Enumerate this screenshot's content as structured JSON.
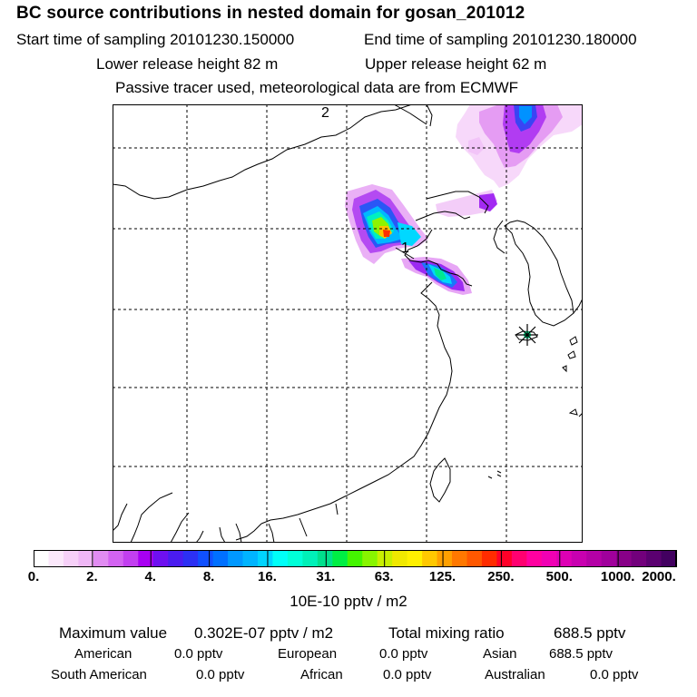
{
  "header": {
    "title": "BC  source contributions in nested domain for gosan_201012",
    "start_label": "Start time of sampling 20101230.150000",
    "end_label": "End time of sampling 20101230.180000",
    "lower_label": "Lower release height   82 m",
    "upper_label": "Upper release height   62 m",
    "tracer_note": "Passive tracer used, meteorological data are from ECMWF"
  },
  "map": {
    "labels": {
      "marker_1": "1",
      "marker_2": "2"
    },
    "receptor_symbol": "star-marker"
  },
  "colorbar": {
    "ticks": [
      "0.",
      "2.",
      "4.",
      "8.",
      "16.",
      "31.",
      "63.",
      "125.",
      "250.",
      "500.",
      "1000.",
      "2000."
    ],
    "units": "10E-10 pptv / m2",
    "colors": [
      "#ffffff",
      "#fbe8fb",
      "#f6d0f8",
      "#efb7f6",
      "#e18cf2",
      "#d363f1",
      "#c23ff0",
      "#a800f2",
      "#6e10f0",
      "#4a1cf0",
      "#2c30f4",
      "#1050ff",
      "#0070ff",
      "#0098ff",
      "#00b4ff",
      "#00d4ff",
      "#00fff8",
      "#00ffd8",
      "#00f0b8",
      "#00e08c",
      "#00ee44",
      "#44f500",
      "#88f500",
      "#c8f000",
      "#f0e800",
      "#fff000",
      "#ffc800",
      "#ffa000",
      "#ff7800",
      "#ff5800",
      "#ff2c00",
      "#ff0028",
      "#ff0070",
      "#ff00a0",
      "#f000b4",
      "#dd00b4",
      "#c800b0",
      "#b400a6",
      "#a0009c",
      "#880088",
      "#72007c",
      "#5a0070",
      "#420060"
    ]
  },
  "stats": {
    "max_label": "Maximum value",
    "max_value": "0.302E-07 pptv / m2",
    "total_label": "Total mixing ratio",
    "total_value": "688.5 pptv"
  },
  "regions": [
    {
      "name": "American",
      "value": "0.0 pptv"
    },
    {
      "name": "European",
      "value": "0.0 pptv"
    },
    {
      "name": "Asian",
      "value": "688.5 pptv"
    },
    {
      "name": "South American",
      "value": "0.0 pptv"
    },
    {
      "name": "African",
      "value": "0.0 pptv"
    },
    {
      "name": "Australian",
      "value": "0.0 pptv"
    }
  ]
}
